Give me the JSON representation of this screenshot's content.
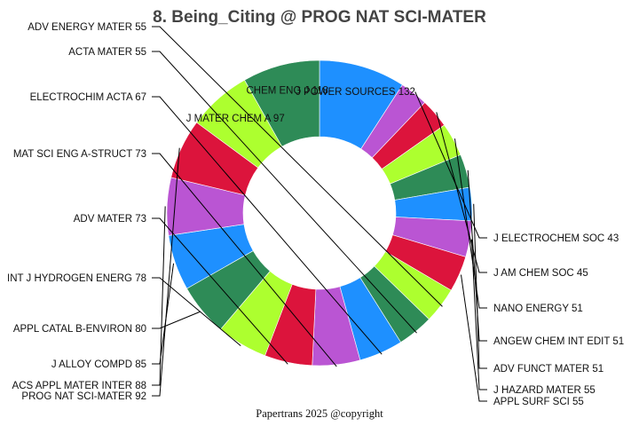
{
  "chart_data": {
    "type": "pie",
    "title": "8. Being_Citing @ PROG NAT SCI-MATER",
    "hole": "donut",
    "categories": [
      "J POWER SOURCES",
      "J ELECTROCHEM SOC",
      "J AM CHEM SOC",
      "NANO ENERGY",
      "ANGEW CHEM INT EDIT",
      "ADV FUNCT MATER",
      "J HAZARD MATER",
      "APPL SURF SCI",
      "ADV ENERGY MATER",
      "ACTA MATER",
      "ELECTROCHIM ACTA",
      "MAT SCI ENG A-STRUCT",
      "ADV MATER",
      "INT J HYDROGEN ENERG",
      "APPL CATAL B-ENVIRON",
      "J ALLOY COMPD",
      "ACS APPL MATER INTER",
      "PROG NAT SCI-MATER",
      "J MATER CHEM A",
      "CHEM ENG J"
    ],
    "values": [
      132,
      43,
      45,
      51,
      51,
      51,
      55,
      55,
      55,
      55,
      67,
      73,
      73,
      78,
      80,
      85,
      88,
      92,
      97,
      118
    ],
    "labels": [
      "J POWER SOURCES 132",
      "J ELECTROCHEM SOC 43",
      "J AM CHEM SOC 45",
      "NANO ENERGY 51",
      "ANGEW CHEM INT EDIT 51",
      "ADV FUNCT MATER 51",
      "J HAZARD MATER 55",
      "APPL SURF SCI 55",
      "ADV ENERGY MATER 55",
      "ACTA MATER 55",
      "ELECTROCHIM ACTA 67",
      "MAT SCI ENG A-STRUCT 73",
      "ADV MATER 73",
      "INT J HYDROGEN ENERG 78",
      "APPL CATAL B-ENVIRON 80",
      "J ALLOY COMPD 85",
      "ACS APPL MATER INTER 88",
      "PROG NAT SCI-MATER 92",
      "J MATER CHEM A 97",
      "CHEM ENG J 118"
    ],
    "colors": [
      "#1e90ff",
      "#ba55d3",
      "#dc143c",
      "#adff2f",
      "#2e8b57",
      "#1e90ff",
      "#ba55d3",
      "#dc143c",
      "#adff2f",
      "#2e8b57",
      "#1e90ff",
      "#ba55d3",
      "#dc143c",
      "#adff2f",
      "#2e8b57",
      "#1e90ff",
      "#ba55d3",
      "#dc143c",
      "#adff2f",
      "#2e8b57"
    ],
    "label_placement": [
      "inside",
      "right",
      "right",
      "right",
      "right",
      "right",
      "right",
      "right",
      "left",
      "left",
      "left",
      "left",
      "left",
      "left",
      "left",
      "left",
      "left",
      "left",
      "inside",
      "inside"
    ],
    "direction": "clockwise",
    "start": "top"
  },
  "footer": {
    "credit": "Papertrans 2025 @copyright"
  }
}
